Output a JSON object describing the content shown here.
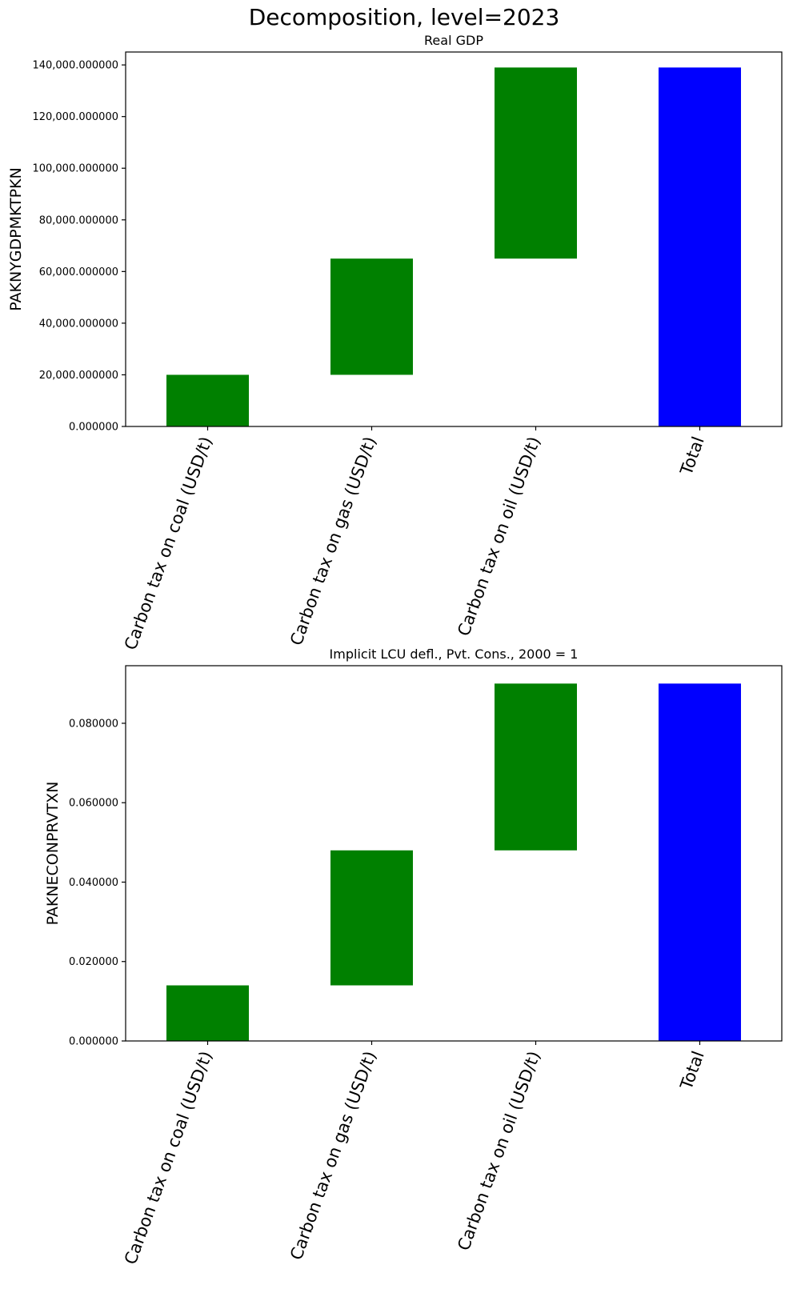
{
  "figure_title": "Decomposition, level=2023",
  "chart_data": [
    {
      "type": "bar",
      "subtype": "waterfall",
      "title": "Real GDP",
      "ylabel": "PAKNYGDPMKTPKN",
      "xlabel": "",
      "categories": [
        "Carbon tax on coal (USD/t)",
        "Carbon tax on gas (USD/t)",
        "Carbon tax on oil (USD/t)",
        "Total"
      ],
      "values": [
        20000,
        45000,
        74000,
        139000
      ],
      "bar_kinds": [
        "contribution",
        "contribution",
        "contribution",
        "total"
      ],
      "colors": {
        "contribution": "#008000",
        "total": "#0000ff"
      },
      "ylim": [
        0,
        145000
      ],
      "yticks": [
        0,
        20000,
        40000,
        60000,
        80000,
        100000,
        120000,
        140000
      ],
      "ytick_labels": [
        "0.000000",
        "20,000.000000",
        "40,000.000000",
        "60,000.000000",
        "80,000.000000",
        "100,000.000000",
        "120,000.000000",
        "140,000.000000"
      ]
    },
    {
      "type": "bar",
      "subtype": "waterfall",
      "title": "Implicit LCU defl., Pvt. Cons., 2000 = 1",
      "ylabel": "PAKNECONPRVTXN",
      "xlabel": "",
      "categories": [
        "Carbon tax on coal (USD/t)",
        "Carbon tax on gas (USD/t)",
        "Carbon tax on oil (USD/t)",
        "Total"
      ],
      "values": [
        0.014,
        0.034,
        0.042,
        0.09
      ],
      "bar_kinds": [
        "contribution",
        "contribution",
        "contribution",
        "total"
      ],
      "colors": {
        "contribution": "#008000",
        "total": "#0000ff"
      },
      "ylim": [
        0,
        0.0945
      ],
      "yticks": [
        0,
        0.02,
        0.04,
        0.06,
        0.08
      ],
      "ytick_labels": [
        "0.000000",
        "0.020000",
        "0.040000",
        "0.060000",
        "0.080000"
      ]
    }
  ]
}
